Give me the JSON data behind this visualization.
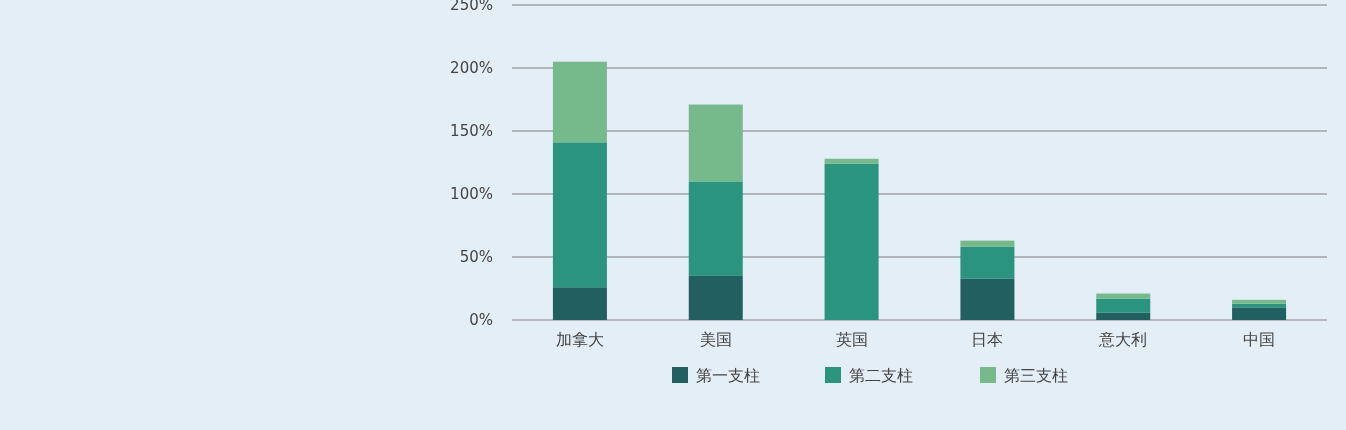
{
  "chart_data": {
    "type": "bar",
    "stacked": true,
    "categories": [
      "加拿大",
      "美国",
      "英国",
      "日本",
      "意大利",
      "中国"
    ],
    "series": [
      {
        "name": "第一支柱",
        "color": "#225f61",
        "values": [
          26,
          35,
          0,
          33,
          6,
          10
        ]
      },
      {
        "name": "第二支柱",
        "color": "#2a947e",
        "values": [
          115,
          75,
          124,
          25,
          11,
          3
        ]
      },
      {
        "name": "第三支柱",
        "color": "#76ba8c",
        "values": [
          64,
          61,
          4,
          5,
          4,
          3
        ]
      }
    ],
    "ylim": [
      0,
      250
    ],
    "yticks": [
      {
        "value": 0,
        "label": "0%"
      },
      {
        "value": 50,
        "label": "50%"
      },
      {
        "value": 100,
        "label": "100%"
      },
      {
        "value": 150,
        "label": "150%"
      },
      {
        "value": 200,
        "label": "200%"
      },
      {
        "value": 250,
        "label": "250%"
      }
    ],
    "grid": "y",
    "legend": "bottom"
  }
}
